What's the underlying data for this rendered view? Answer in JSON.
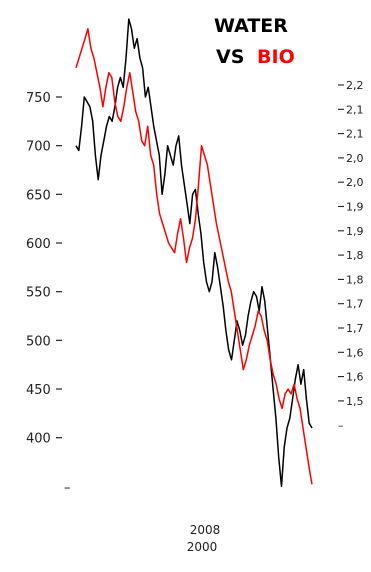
{
  "chart_data": {
    "type": "line",
    "title_line1": "WATER",
    "title_line2_prefix": "VS",
    "title_line2_highlight": "BIO",
    "title_colors": {
      "primary": "#000000",
      "highlight": "#ff0000"
    },
    "x_tick_labels": [
      "2008",
      "2000"
    ],
    "left_axis": {
      "ticks": [
        750,
        700,
        650,
        600,
        550,
        500,
        450,
        400
      ],
      "bottom_tick_label": "–",
      "ylim": [
        342,
        790
      ]
    },
    "right_axis": {
      "ticks": [
        "2,2",
        "2,1",
        "2,1",
        "2,0",
        "2,0",
        "1,9",
        "1,9",
        "1,8",
        "1,8",
        "1,7",
        "1,7",
        "1,6",
        "1,6",
        "1,5"
      ],
      "bottom_tick_label": "–"
    },
    "series": [
      {
        "color": "#000000",
        "values": [
          700,
          695,
          720,
          750,
          745,
          740,
          725,
          690,
          665,
          690,
          705,
          720,
          730,
          725,
          740,
          760,
          770,
          760,
          790,
          830,
          820,
          800,
          810,
          790,
          780,
          750,
          760,
          740,
          720,
          705,
          690,
          650,
          670,
          700,
          690,
          680,
          700,
          710,
          680,
          660,
          640,
          620,
          650,
          655,
          630,
          610,
          580,
          560,
          550,
          560,
          590,
          575,
          555,
          535,
          510,
          490,
          480,
          500,
          520,
          510,
          495,
          505,
          525,
          540,
          550,
          545,
          530,
          555,
          540,
          510,
          480,
          450,
          420,
          380,
          350,
          390,
          410,
          420,
          440,
          460,
          475,
          455,
          470,
          440,
          415,
          410
        ]
      },
      {
        "color": "#ff0000",
        "values": [
          780,
          790,
          800,
          810,
          820,
          800,
          790,
          775,
          760,
          740,
          760,
          775,
          770,
          745,
          730,
          725,
          740,
          760,
          775,
          755,
          735,
          725,
          705,
          700,
          720,
          690,
          680,
          650,
          630,
          620,
          610,
          600,
          595,
          590,
          610,
          625,
          605,
          580,
          595,
          605,
          625,
          660,
          700,
          690,
          680,
          660,
          640,
          620,
          605,
          590,
          575,
          560,
          550,
          530,
          510,
          490,
          470,
          480,
          495,
          505,
          515,
          530,
          525,
          510,
          500,
          480,
          465,
          455,
          440,
          430,
          445,
          450,
          445,
          455,
          440,
          430,
          410,
          390,
          370,
          352
        ]
      }
    ]
  }
}
